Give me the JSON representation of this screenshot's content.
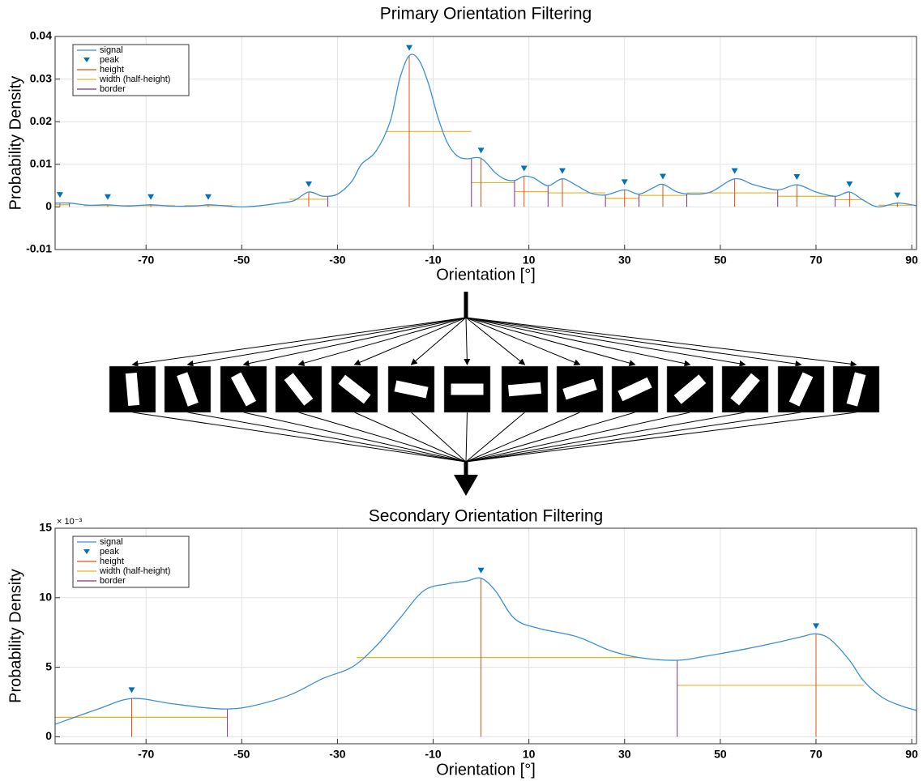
{
  "chart_data": [
    {
      "type": "line",
      "title": "Primary Orientation Filtering",
      "x_label": "Orientation [°]",
      "y_label": "Probability Density",
      "xlim": [
        -89,
        91
      ],
      "ylim": [
        -0.01,
        0.04
      ],
      "xticks": [
        -70,
        -50,
        -30,
        -10,
        10,
        30,
        50,
        70,
        90
      ],
      "yticks": [
        -0.01,
        0,
        0.01,
        0.02,
        0.03,
        0.04
      ],
      "grid": true,
      "legend": "upper left",
      "series": [
        {
          "name": "signal",
          "color": "#3b8fd4",
          "x": [
            -89,
            -86,
            -82,
            -78,
            -74,
            -69,
            -65,
            -60,
            -57,
            -54,
            -50,
            -46,
            -42,
            -39,
            -36,
            -33,
            -30,
            -27,
            -25,
            -22,
            -19,
            -17,
            -15,
            -13,
            -11,
            -9,
            -7,
            -5,
            -3,
            0,
            3,
            5,
            7,
            9,
            11,
            14,
            17,
            20,
            23,
            26,
            30,
            33,
            36,
            38,
            41,
            44,
            48,
            53,
            57,
            62,
            66,
            70,
            74,
            77,
            80,
            83,
            87,
            91
          ],
          "values": [
            0.0009,
            0.0009,
            0.0004,
            0.0005,
            0.0002,
            0.0005,
            0.0002,
            0.0002,
            0.0005,
            0.0003,
            0,
            0.0003,
            0.0009,
            0.0015,
            0.0035,
            0.0025,
            0.003,
            0.006,
            0.01,
            0.013,
            0.02,
            0.03,
            0.0355,
            0.0345,
            0.029,
            0.021,
            0.015,
            0.012,
            0.0113,
            0.0114,
            0.008,
            0.0065,
            0.0062,
            0.0072,
            0.0068,
            0.005,
            0.0066,
            0.005,
            0.0032,
            0.0028,
            0.004,
            0.003,
            0.0045,
            0.0053,
            0.0035,
            0.003,
            0.0035,
            0.0066,
            0.0052,
            0.004,
            0.0052,
            0.0035,
            0.0025,
            0.0035,
            0.0015,
            0,
            0.0009,
            0.0003
          ]
        },
        {
          "name": "peak",
          "color": "#0072bd",
          "x": [
            -88,
            -78,
            -69,
            -57,
            -36,
            -15,
            0,
            9,
            17,
            30,
            38,
            53,
            66,
            77,
            87
          ],
          "values": [
            0.001,
            0.0005,
            0.0005,
            0.0005,
            0.0035,
            0.0355,
            0.0114,
            0.0072,
            0.0066,
            0.004,
            0.0053,
            0.0066,
            0.0052,
            0.0035,
            0.0009
          ]
        },
        {
          "name": "height",
          "color": "#d95319"
        },
        {
          "name": "width (half-height)",
          "color": "#edb120",
          "x0": [
            -89,
            -83,
            -73,
            -62,
            -40,
            -20,
            -2,
            7,
            14,
            26,
            33,
            43,
            62,
            74,
            83
          ],
          "x1": [
            -86,
            -73,
            -64,
            -52,
            -32,
            -2,
            7,
            14,
            26,
            33,
            43,
            62,
            74,
            80,
            90
          ],
          "values": [
            0.0005,
            0.0003,
            0.0003,
            0.0003,
            0.0018,
            0.0177,
            0.0057,
            0.0036,
            0.0033,
            0.002,
            0.0027,
            0.0033,
            0.0025,
            0.0017,
            0.0004
          ]
        },
        {
          "name": "border",
          "color": "#7e2f8e",
          "x": [
            -86,
            -32,
            -2,
            7,
            14,
            26,
            33,
            43,
            62,
            74
          ],
          "values": [
            0.0009,
            0.0025,
            0.0113,
            0.0062,
            0.005,
            0.0028,
            0.003,
            0.003,
            0.004,
            0.0025
          ]
        }
      ]
    },
    {
      "type": "line",
      "title": "Secondary Orientation Filtering",
      "x_label": "Orientation [°]",
      "y_label": "Probability Density",
      "y_multiplier": "× 10⁻³",
      "xlim": [
        -89,
        91
      ],
      "ylim": [
        -0.5,
        15
      ],
      "xticks": [
        -70,
        -50,
        -30,
        -10,
        10,
        30,
        50,
        70,
        90
      ],
      "yticks": [
        0,
        5,
        10,
        15
      ],
      "grid": true,
      "legend": "upper left",
      "series": [
        {
          "name": "signal",
          "color": "#3b8fd4",
          "x": [
            -89,
            -80,
            -73,
            -65,
            -58,
            -53,
            -48,
            -40,
            -33,
            -27,
            -22,
            -17,
            -12,
            -7,
            -3,
            0,
            3,
            7,
            12,
            20,
            27,
            33,
            41,
            47,
            55,
            62,
            67,
            70,
            73,
            77,
            80,
            84,
            88,
            91
          ],
          "values": [
            0.9,
            2.0,
            2.75,
            2.4,
            2.1,
            2.0,
            2.2,
            3.0,
            4.2,
            5.0,
            6.5,
            8.5,
            10.5,
            11.0,
            11.2,
            11.4,
            10.5,
            8.5,
            7.8,
            7.2,
            6.2,
            5.7,
            5.5,
            5.8,
            6.3,
            6.8,
            7.2,
            7.4,
            7.0,
            5.5,
            4.0,
            2.8,
            2.2,
            1.9
          ]
        },
        {
          "name": "peak",
          "color": "#0072bd",
          "x": [
            -73,
            0,
            70
          ],
          "values": [
            2.8,
            11.4,
            7.4
          ]
        },
        {
          "name": "height",
          "color": "#d95319"
        },
        {
          "name": "width (half-height)",
          "color": "#edb120",
          "x0": [
            -89,
            -26,
            41
          ],
          "x1": [
            -53,
            33,
            80
          ],
          "values": [
            1.4,
            5.7,
            3.7
          ]
        },
        {
          "name": "border",
          "color": "#7e2f8e",
          "x": [
            -53,
            41
          ],
          "values": [
            2.0,
            5.5
          ]
        }
      ]
    }
  ]
}
